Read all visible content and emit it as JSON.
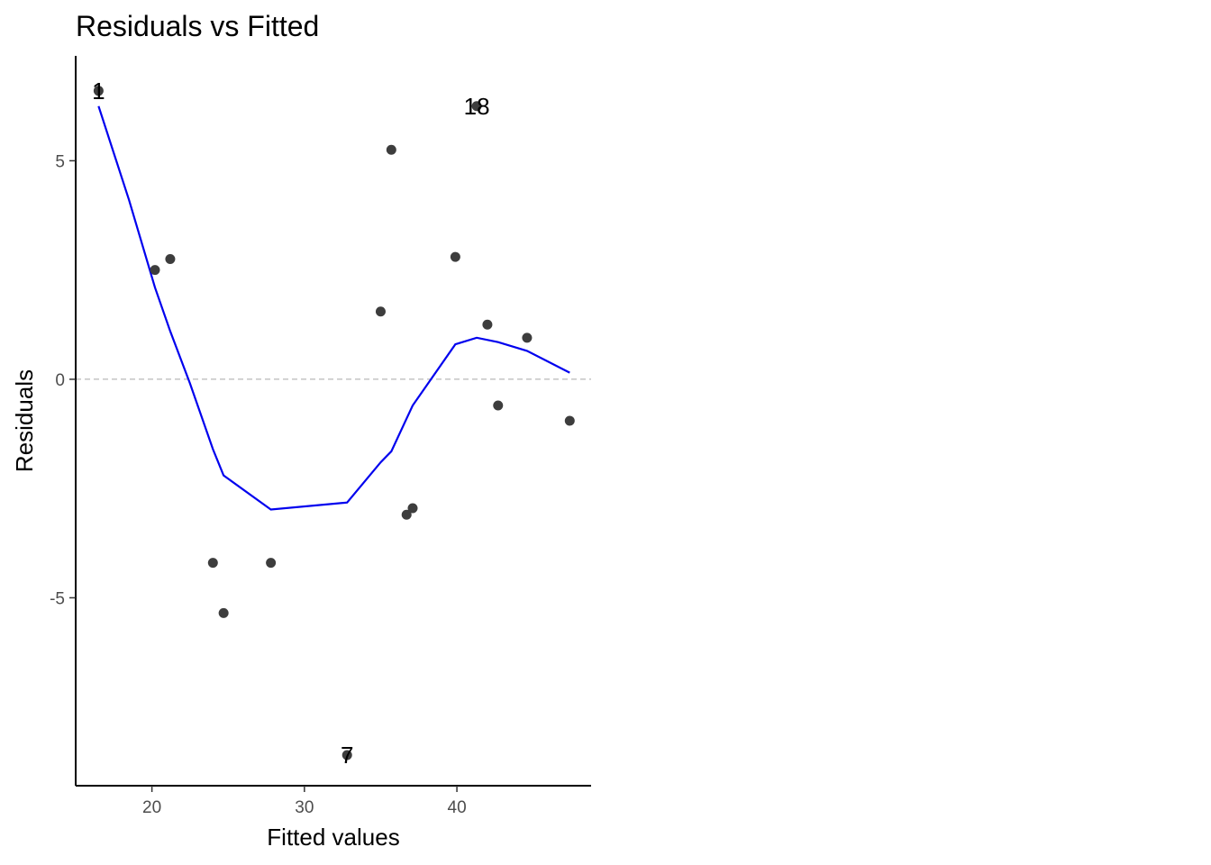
{
  "chart_data": {
    "type": "scatter",
    "title": "Residuals vs Fitted",
    "xlabel": "Fitted values",
    "ylabel": "Residuals",
    "xlim": [
      15,
      48.8
    ],
    "ylim": [
      -9.3,
      7.4
    ],
    "x_ticks": [
      20,
      30,
      40
    ],
    "y_ticks": [
      -5,
      0,
      5
    ],
    "x_tick_labels": [
      "20",
      "30",
      "40"
    ],
    "y_tick_labels": [
      "-5",
      "0",
      "5"
    ],
    "reference_line": {
      "y": 0,
      "style": "dashed",
      "color": "#a6a6a6"
    },
    "grid": false,
    "points": [
      {
        "x": 16.5,
        "y": 6.6
      },
      {
        "x": 20.2,
        "y": 2.5
      },
      {
        "x": 21.2,
        "y": 2.75
      },
      {
        "x": 24.0,
        "y": -4.2
      },
      {
        "x": 24.7,
        "y": -5.35
      },
      {
        "x": 27.8,
        "y": -4.2
      },
      {
        "x": 32.8,
        "y": -8.6
      },
      {
        "x": 35.0,
        "y": 1.55
      },
      {
        "x": 35.7,
        "y": 5.25
      },
      {
        "x": 36.7,
        "y": -3.1
      },
      {
        "x": 37.1,
        "y": -2.95
      },
      {
        "x": 39.9,
        "y": 2.8
      },
      {
        "x": 41.3,
        "y": 6.25
      },
      {
        "x": 42.0,
        "y": 1.25
      },
      {
        "x": 42.7,
        "y": -0.6
      },
      {
        "x": 44.6,
        "y": 0.95
      },
      {
        "x": 47.4,
        "y": -0.95
      }
    ],
    "point_labels": [
      {
        "text": "1",
        "x": 16.5,
        "y": 6.6
      },
      {
        "text": "18",
        "x": 41.3,
        "y": 6.25
      },
      {
        "text": "7",
        "x": 32.8,
        "y": -8.6
      }
    ],
    "smooth_line": {
      "color": "#0000ee",
      "points": [
        {
          "x": 16.5,
          "y": 6.25
        },
        {
          "x": 18.5,
          "y": 4.1
        },
        {
          "x": 20.2,
          "y": 2.1
        },
        {
          "x": 21.2,
          "y": 1.1
        },
        {
          "x": 22.5,
          "y": -0.1
        },
        {
          "x": 24.0,
          "y": -1.6
        },
        {
          "x": 24.7,
          "y": -2.2
        },
        {
          "x": 27.8,
          "y": -2.98
        },
        {
          "x": 32.8,
          "y": -2.82
        },
        {
          "x": 35.0,
          "y": -1.9
        },
        {
          "x": 35.7,
          "y": -1.65
        },
        {
          "x": 36.7,
          "y": -0.9
        },
        {
          "x": 37.1,
          "y": -0.6
        },
        {
          "x": 39.9,
          "y": 0.8
        },
        {
          "x": 41.3,
          "y": 0.95
        },
        {
          "x": 42.7,
          "y": 0.85
        },
        {
          "x": 44.6,
          "y": 0.65
        },
        {
          "x": 47.4,
          "y": 0.15
        }
      ]
    }
  }
}
